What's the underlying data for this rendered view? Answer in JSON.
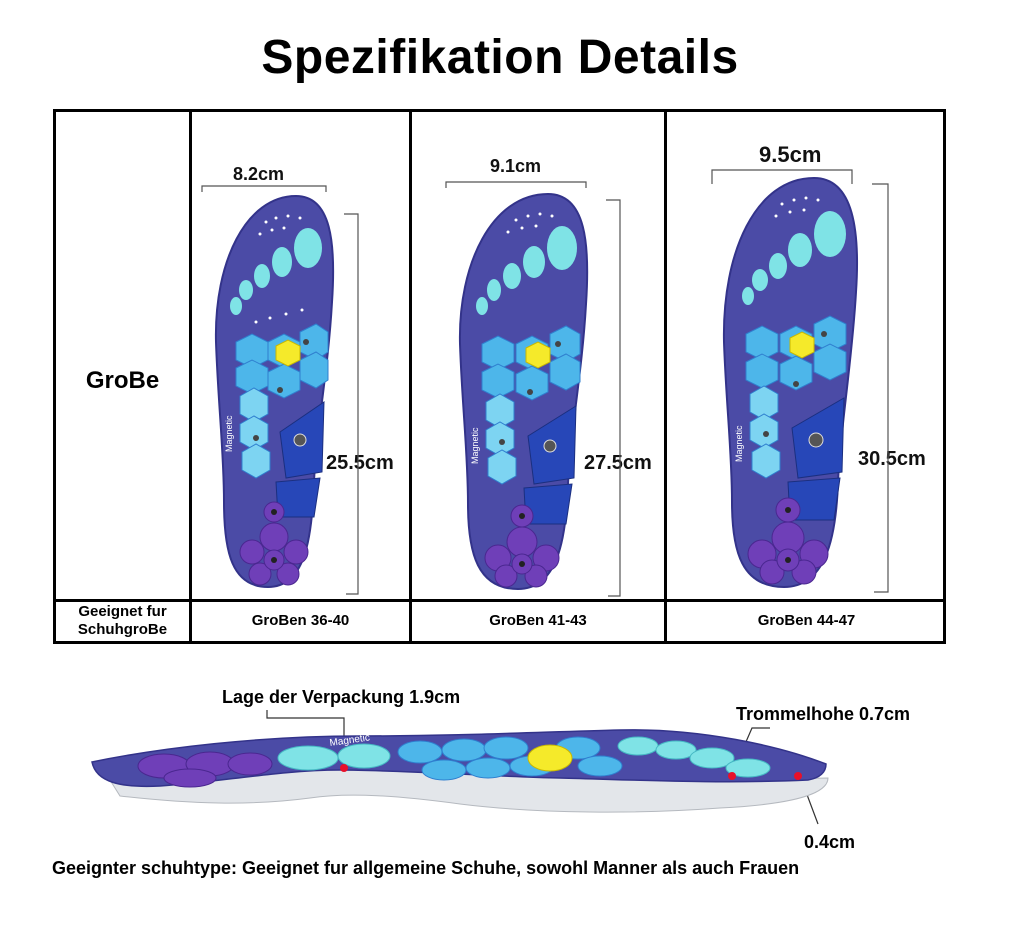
{
  "title": "Spezifikation Details",
  "table": {
    "row_header": "GroBe",
    "fit_header_line1": "Geeignet fur",
    "fit_header_line2": "SchuhgroBe",
    "columns": [
      {
        "width": "8.2cm",
        "length": "25.5cm",
        "sizes": "GroBen 36-40"
      },
      {
        "width": "9.1cm",
        "length": "27.5cm",
        "sizes": "GroBen  41-43"
      },
      {
        "width": "9.5cm",
        "length": "30.5cm",
        "sizes": "GroBen  44-47"
      }
    ],
    "insole_label": "Magnetic"
  },
  "side_view": {
    "label_packaging": "Lage der Verpackung 1.9cm",
    "label_drum": "Trommelhohe 0.7cm",
    "label_thickness": "0.4cm",
    "insole_label": "Magnetic"
  },
  "footer": "Geeignter schuhtype: Geeignet fur allgemeine Schuhe, sowohl Manner als auch Frauen",
  "colors": {
    "insole_base": "#4b4ba6",
    "insole_dark": "#33338a",
    "toe_cyan": "#7fe3e6",
    "hex_blue": "#4db6ea",
    "hex_light": "#7dd4f2",
    "arch_blue": "#2747b8",
    "heel_purple": "#6f3fb8",
    "center_yellow": "#f5ea2a",
    "marker_red": "#e8102a"
  }
}
